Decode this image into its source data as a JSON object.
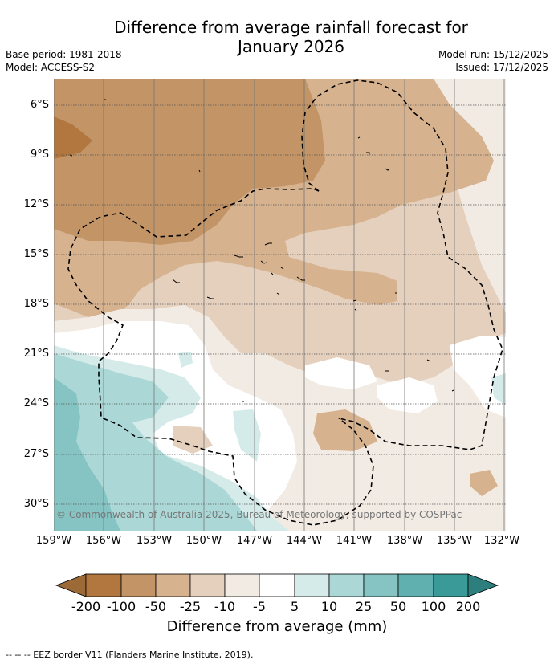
{
  "title_line1": "Difference from average rainfall forecast for",
  "title_line2": "January 2026",
  "base_period": "Base period: 1981-2018",
  "model": "Model: ACCESS-S2",
  "model_run": "Model run: 15/12/2025",
  "issued": "Issued: 17/12/2025",
  "lat_labels": [
    "6°S",
    "9°S",
    "12°S",
    "15°S",
    "18°S",
    "21°S",
    "24°S",
    "27°S",
    "30°S"
  ],
  "lon_labels": [
    "159°W",
    "156°W",
    "153°W",
    "150°W",
    "147°W",
    "144°W",
    "141°W",
    "138°W",
    "135°W",
    "132°W"
  ],
  "copyright": "© Commonwealth of Australia 2025, Bureau of Meteorology, supported by COSPPac",
  "colorbar": {
    "ticks": [
      "-200",
      "-100",
      "-50",
      "-25",
      "-10",
      "-5",
      "5",
      "10",
      "25",
      "50",
      "100",
      "200"
    ],
    "label": "Difference from average (mm)",
    "colors": [
      "#9c6a36",
      "#b2773e",
      "#c29466",
      "#d6b28f",
      "#e5d0bd",
      "#f2ebe4",
      "#ffffff",
      "#d5ebea",
      "#abd8d7",
      "#86c4c3",
      "#5fb0ae",
      "#3a9a97",
      "#2c7f7c"
    ]
  },
  "footer": "--  --  -- EEZ border V11 (Flanders Marine Institute, 2019)."
}
